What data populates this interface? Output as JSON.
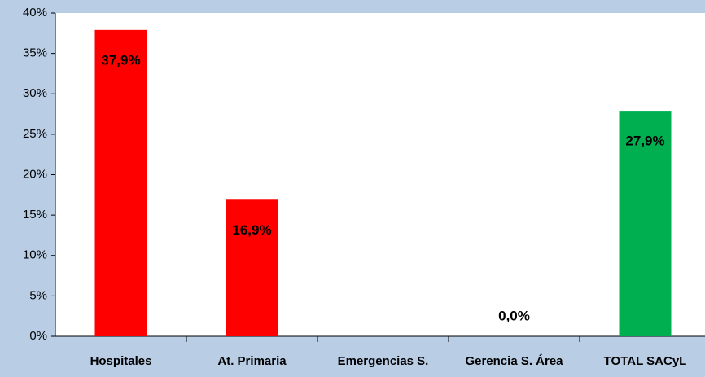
{
  "chart_data": {
    "type": "bar",
    "categories": [
      "Hospitales",
      "At. Primaria",
      "Emergencias S.",
      "Gerencia S. Área",
      "TOTAL SACyL"
    ],
    "values": [
      37.9,
      16.9,
      null,
      0,
      27.9
    ],
    "value_labels": [
      "37,9%",
      "16,9%",
      null,
      "0,0%",
      "27,9%"
    ],
    "colors": [
      "#ff0000",
      "#ff0000",
      "#ff0000",
      "#ff0000",
      "#00b050"
    ],
    "ylim": [
      0,
      40
    ],
    "yticks": [
      {
        "value": 0,
        "label": "0%"
      },
      {
        "value": 5,
        "label": "5%"
      },
      {
        "value": 10,
        "label": "10%"
      },
      {
        "value": 15,
        "label": "15%"
      },
      {
        "value": 20,
        "label": "20%"
      },
      {
        "value": 25,
        "label": "25%"
      },
      {
        "value": 30,
        "label": "30%"
      },
      {
        "value": 35,
        "label": "35%"
      },
      {
        "value": 40,
        "label": "40%"
      }
    ]
  }
}
